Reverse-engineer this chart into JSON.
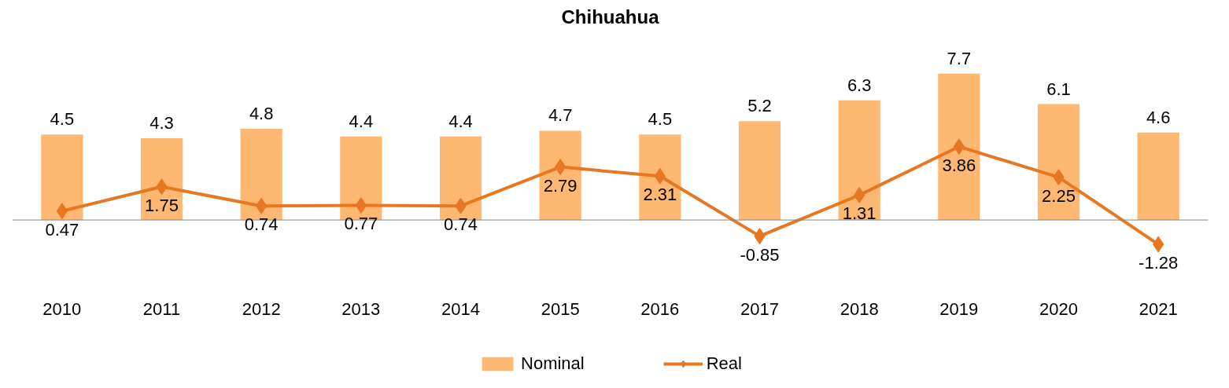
{
  "chart_data": {
    "type": "bar",
    "title": "Chihuahua",
    "categories": [
      "2010",
      "2011",
      "2012",
      "2013",
      "2014",
      "2015",
      "2016",
      "2017",
      "2018",
      "2019",
      "2020",
      "2021"
    ],
    "series": [
      {
        "name": "Nominal",
        "color": "#ffb871",
        "values": [
          4.5,
          4.3,
          4.8,
          4.4,
          4.4,
          4.7,
          4.5,
          5.2,
          6.3,
          7.7,
          6.1,
          4.6
        ]
      },
      {
        "name": "Real",
        "type": "line",
        "color": "#e87722",
        "marker": "diamond",
        "values": [
          0.47,
          1.75,
          0.74,
          0.77,
          0.74,
          2.79,
          2.31,
          -0.85,
          1.31,
          3.86,
          2.25,
          -1.28
        ]
      }
    ],
    "data_labels": true,
    "relative": false,
    "legend": "bottom",
    "grid": false
  }
}
